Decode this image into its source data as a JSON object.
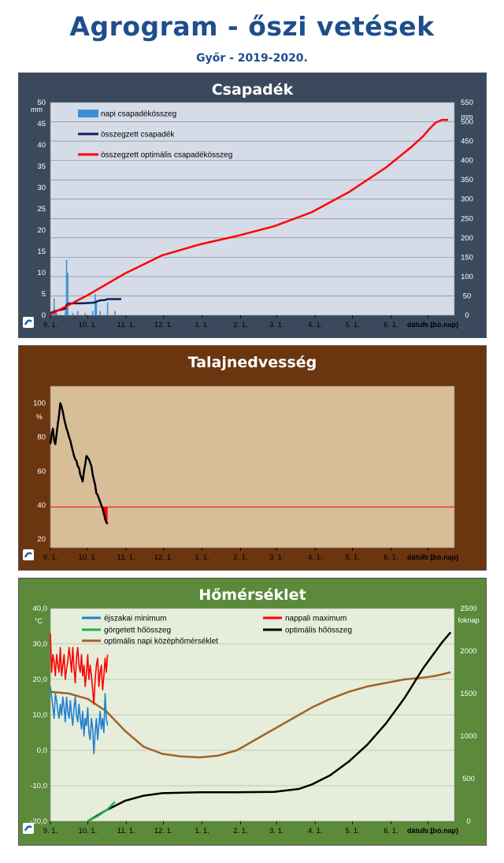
{
  "header": {
    "title": "Agrogram - őszi vetések",
    "subtitle": "Győr - 2019-2020."
  },
  "x_ticks": [
    "9. 1.",
    "10. 1.",
    "11. 1.",
    "12. 1.",
    "1. 1.",
    "2. 1.",
    "3. 1.",
    "4. 1.",
    "5. 1.",
    "6. 1.",
    "7. 1."
  ],
  "x_axis_label": "dátum (hó.nap)",
  "colors": {
    "panel1_bg": "#3a4a5c",
    "panel1_plot": "#d5dce8",
    "panel2_bg": "#6b3510",
    "panel2_plot": "#d7bd98",
    "panel3_bg": "#5b8a3a",
    "panel3_plot": "#e6eedb"
  },
  "chart_data": [
    {
      "type": "bar+line",
      "title": "Csapadék",
      "ylabel_left": "mm",
      "ylim_left": [
        0,
        50
      ],
      "yticks_left": [
        "0",
        "5",
        "10",
        "15",
        "20",
        "25",
        "30",
        "35",
        "40",
        "45",
        "50"
      ],
      "ylabel_right": "mm",
      "ylim_right": [
        0,
        550
      ],
      "yticks_right": [
        "0",
        "50",
        "100",
        "150",
        "200",
        "250",
        "300",
        "350",
        "400",
        "450",
        "500",
        "550"
      ],
      "legend": [
        "napi csapadékösszeg",
        "összegzett csapadék",
        "összegzett optimális csapadékösszeg"
      ],
      "daily_precip": [
        [
          3,
          4
        ],
        [
          4,
          1
        ],
        [
          5,
          0.5
        ],
        [
          12,
          1
        ],
        [
          13,
          13
        ],
        [
          14,
          10
        ],
        [
          18,
          0.5
        ],
        [
          22,
          1
        ],
        [
          28,
          0.5
        ],
        [
          34,
          1
        ],
        [
          36,
          5
        ],
        [
          37,
          3
        ],
        [
          40,
          1
        ],
        [
          46,
          3
        ],
        [
          52,
          1
        ]
      ],
      "cumulative_precip": [
        [
          0,
          0.5
        ],
        [
          4,
          1
        ],
        [
          12,
          1.5
        ],
        [
          13,
          2.5
        ],
        [
          14,
          2.5
        ],
        [
          15,
          2.8
        ],
        [
          25,
          2.8
        ],
        [
          33,
          2.9
        ],
        [
          36,
          3
        ],
        [
          37,
          3.2
        ],
        [
          40,
          3.5
        ],
        [
          44,
          3.6
        ],
        [
          46,
          3.8
        ],
        [
          52,
          3.8
        ],
        [
          57,
          3.8
        ]
      ],
      "cumulative_optimal": [
        [
          0,
          2
        ],
        [
          30,
          52
        ],
        [
          60,
          108
        ],
        [
          90,
          155
        ],
        [
          120,
          183
        ],
        [
          150,
          205
        ],
        [
          180,
          230
        ],
        [
          210,
          266
        ],
        [
          240,
          318
        ],
        [
          270,
          382
        ],
        [
          290,
          434
        ],
        [
          300,
          463
        ],
        [
          305,
          482
        ],
        [
          310,
          498
        ],
        [
          315,
          505
        ],
        [
          320,
          505
        ]
      ]
    },
    {
      "type": "line",
      "title": "Talajnedvesség",
      "ylabel": "%",
      "ylim": [
        15,
        110
      ],
      "yticks": [
        "20",
        "40",
        "60",
        "80",
        "100"
      ],
      "reference_level": 39,
      "soil_moisture": [
        [
          0,
          76
        ],
        [
          1,
          82
        ],
        [
          2,
          85
        ],
        [
          3,
          78
        ],
        [
          4,
          76
        ],
        [
          5,
          82
        ],
        [
          6,
          88
        ],
        [
          7,
          93
        ],
        [
          8,
          100
        ],
        [
          9,
          98
        ],
        [
          10,
          95
        ],
        [
          11,
          91
        ],
        [
          12,
          88
        ],
        [
          13,
          85
        ],
        [
          14,
          83
        ],
        [
          15,
          80
        ],
        [
          16,
          78
        ],
        [
          17,
          75
        ],
        [
          18,
          72
        ],
        [
          19,
          69
        ],
        [
          20,
          67
        ],
        [
          21,
          66
        ],
        [
          22,
          63
        ],
        [
          23,
          62
        ],
        [
          24,
          58
        ],
        [
          25,
          56
        ],
        [
          26,
          54
        ],
        [
          27,
          60
        ],
        [
          28,
          64
        ],
        [
          29,
          69
        ],
        [
          30,
          68
        ],
        [
          31,
          67
        ],
        [
          32,
          65
        ],
        [
          33,
          63
        ],
        [
          34,
          58
        ],
        [
          35,
          55
        ],
        [
          36,
          52
        ],
        [
          37,
          47
        ],
        [
          38,
          46
        ],
        [
          39,
          44
        ],
        [
          40,
          42
        ],
        [
          41,
          40
        ],
        [
          42,
          38
        ],
        [
          43,
          35
        ],
        [
          44,
          32
        ],
        [
          45,
          30
        ],
        [
          46,
          29
        ]
      ]
    },
    {
      "type": "line",
      "title": "Hőmérséklet",
      "ylabel_left": "°C",
      "ylim_left": [
        -20,
        40
      ],
      "yticks_left": [
        "-20,0",
        "-10,0",
        "0,0",
        "10,0",
        "20,0",
        "30,0",
        "40,0"
      ],
      "ylabel_right": "foknap",
      "ylim_right": [
        0,
        2500
      ],
      "yticks_right": [
        "0",
        "500",
        "1000",
        "1500",
        "2000",
        "2500"
      ],
      "legend": [
        "éjszakai minimum",
        "nappali maximum",
        "görgetett hőösszeg",
        "optimális hőösszeg",
        "optimális napi középhőmérséklet"
      ],
      "night_min": [
        [
          0,
          18
        ],
        [
          1,
          15
        ],
        [
          2,
          12
        ],
        [
          3,
          9
        ],
        [
          4,
          16
        ],
        [
          5,
          14
        ],
        [
          6,
          11
        ],
        [
          7,
          9
        ],
        [
          8,
          13
        ],
        [
          9,
          10
        ],
        [
          10,
          15
        ],
        [
          11,
          12
        ],
        [
          12,
          8
        ],
        [
          13,
          15
        ],
        [
          14,
          11
        ],
        [
          15,
          9
        ],
        [
          16,
          14
        ],
        [
          17,
          10
        ],
        [
          18,
          7
        ],
        [
          19,
          12
        ],
        [
          20,
          15
        ],
        [
          21,
          10
        ],
        [
          22,
          8
        ],
        [
          23,
          13
        ],
        [
          24,
          9
        ],
        [
          25,
          6
        ],
        [
          26,
          11
        ],
        [
          27,
          4
        ],
        [
          28,
          9
        ],
        [
          29,
          7
        ],
        [
          30,
          12
        ],
        [
          31,
          5
        ],
        [
          32,
          3
        ],
        [
          33,
          9
        ],
        [
          34,
          6
        ],
        [
          35,
          -1
        ],
        [
          36,
          5
        ],
        [
          37,
          9
        ],
        [
          38,
          3
        ],
        [
          39,
          7
        ],
        [
          40,
          11
        ],
        [
          41,
          6
        ],
        [
          42,
          9
        ],
        [
          43,
          5
        ],
        [
          44,
          16
        ],
        [
          45,
          9
        ],
        [
          46,
          7
        ]
      ],
      "day_max": [
        [
          0,
          33
        ],
        [
          1,
          22
        ],
        [
          2,
          27
        ],
        [
          3,
          25
        ],
        [
          4,
          21
        ],
        [
          5,
          27
        ],
        [
          6,
          24
        ],
        [
          7,
          22
        ],
        [
          8,
          29
        ],
        [
          9,
          21
        ],
        [
          10,
          24
        ],
        [
          11,
          27
        ],
        [
          12,
          20
        ],
        [
          13,
          23
        ],
        [
          14,
          25
        ],
        [
          15,
          29
        ],
        [
          16,
          26
        ],
        [
          17,
          22
        ],
        [
          18,
          29
        ],
        [
          19,
          23
        ],
        [
          20,
          19
        ],
        [
          21,
          26
        ],
        [
          22,
          29
        ],
        [
          23,
          24
        ],
        [
          24,
          22
        ],
        [
          25,
          27
        ],
        [
          26,
          21
        ],
        [
          27,
          24
        ],
        [
          28,
          18
        ],
        [
          29,
          22
        ],
        [
          30,
          27
        ],
        [
          31,
          20
        ],
        [
          32,
          24
        ],
        [
          33,
          21
        ],
        [
          34,
          17
        ],
        [
          35,
          13
        ],
        [
          36,
          20
        ],
        [
          37,
          24
        ],
        [
          38,
          26
        ],
        [
          39,
          18
        ],
        [
          40,
          22
        ],
        [
          41,
          24
        ],
        [
          42,
          17
        ],
        [
          43,
          21
        ],
        [
          44,
          26
        ],
        [
          45,
          22
        ],
        [
          46,
          27
        ]
      ],
      "rolling_heat_sum": [
        [
          30,
          0
        ],
        [
          38,
          60
        ],
        [
          46,
          140
        ],
        [
          50,
          200
        ],
        [
          52,
          230
        ]
      ],
      "optimal_heat_sum": [
        [
          30,
          0
        ],
        [
          45,
          130
        ],
        [
          60,
          240
        ],
        [
          75,
          300
        ],
        [
          90,
          330
        ],
        [
          120,
          340
        ],
        [
          150,
          340
        ],
        [
          180,
          345
        ],
        [
          200,
          380
        ],
        [
          210,
          430
        ],
        [
          225,
          540
        ],
        [
          240,
          700
        ],
        [
          255,
          900
        ],
        [
          270,
          1150
        ],
        [
          285,
          1450
        ],
        [
          300,
          1800
        ],
        [
          315,
          2100
        ],
        [
          322,
          2220
        ]
      ],
      "optimal_daily_mean": [
        [
          0,
          16.5
        ],
        [
          15,
          16
        ],
        [
          30,
          14.5
        ],
        [
          45,
          11
        ],
        [
          60,
          5.5
        ],
        [
          75,
          1
        ],
        [
          90,
          -1
        ],
        [
          105,
          -1.7
        ],
        [
          120,
          -2
        ],
        [
          135,
          -1.5
        ],
        [
          150,
          0
        ],
        [
          165,
          3
        ],
        [
          180,
          6
        ],
        [
          195,
          9
        ],
        [
          210,
          12
        ],
        [
          225,
          14.5
        ],
        [
          240,
          16.5
        ],
        [
          255,
          18
        ],
        [
          270,
          19
        ],
        [
          285,
          20
        ],
        [
          300,
          20.5
        ],
        [
          310,
          21
        ],
        [
          322,
          22
        ]
      ]
    }
  ]
}
